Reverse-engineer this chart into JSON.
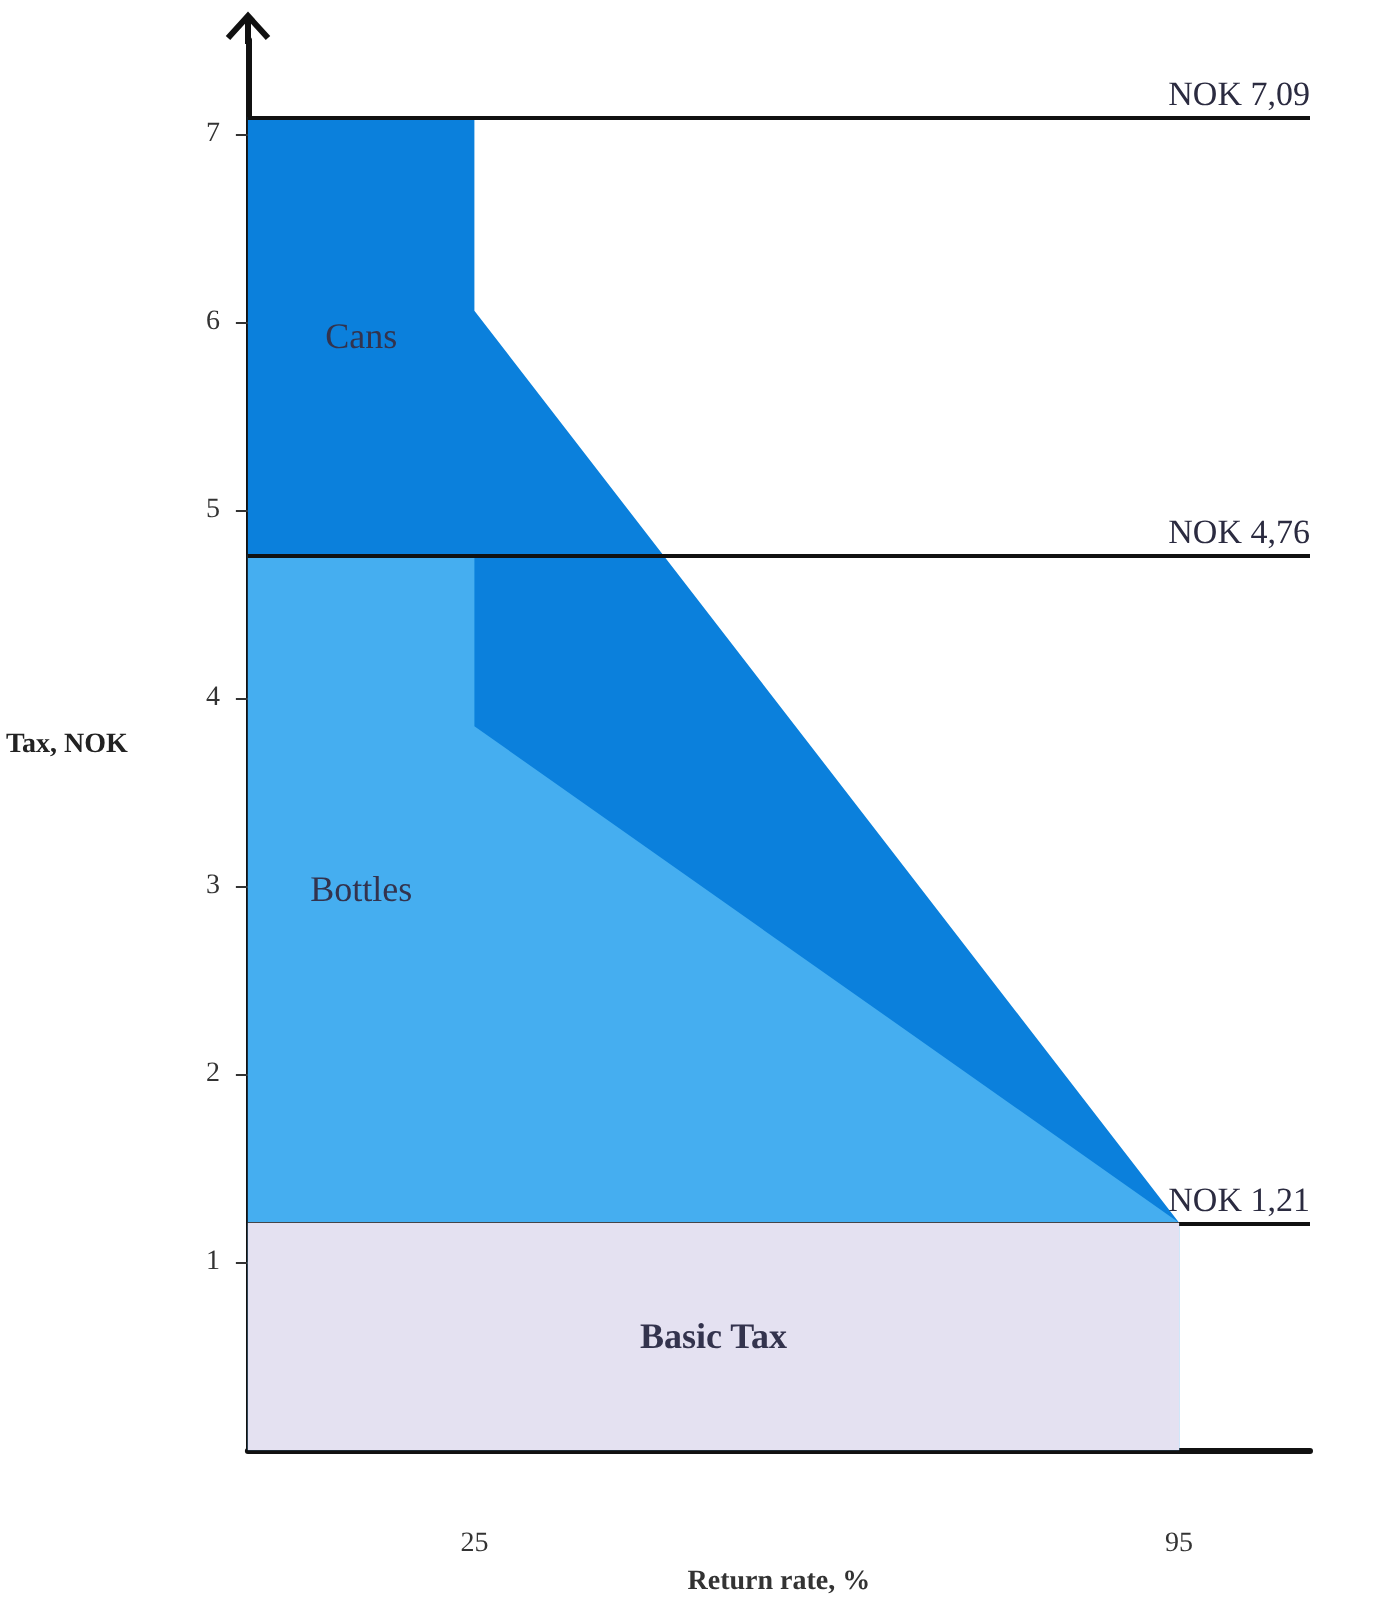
{
  "chart_data": {
    "type": "area",
    "stacked": true,
    "xlabel": "Return rate, %",
    "ylabel": "Tax, NOK",
    "x": [
      2.5,
      25,
      25,
      95
    ],
    "series": [
      {
        "name": "Basic Tax",
        "color": "#e4e1f1",
        "values": [
          1.21,
          1.21,
          1.21,
          1.21
        ]
      },
      {
        "name": "Bottles",
        "color": "#45aef0",
        "values": [
          3.55,
          3.55,
          2.64,
          0
        ]
      },
      {
        "name": "Cans",
        "color": "#0b80dc",
        "values": [
          2.33,
          2.33,
          2.21,
          0
        ]
      }
    ],
    "xlim": [
      2.5,
      108
    ],
    "xticks": [
      25,
      95
    ],
    "ylim": [
      0,
      7.5
    ],
    "yticks": [
      1,
      2,
      3,
      4,
      5,
      6,
      7
    ],
    "ref_lines": [
      {
        "axis": "y",
        "value": 7.09,
        "label": "NOK 7,09"
      },
      {
        "axis": "y",
        "value": 4.76,
        "label": "NOK 4,76"
      },
      {
        "axis": "y",
        "value": 1.21,
        "label": "NOK 1,21"
      }
    ],
    "grid": false,
    "legend": false
  }
}
